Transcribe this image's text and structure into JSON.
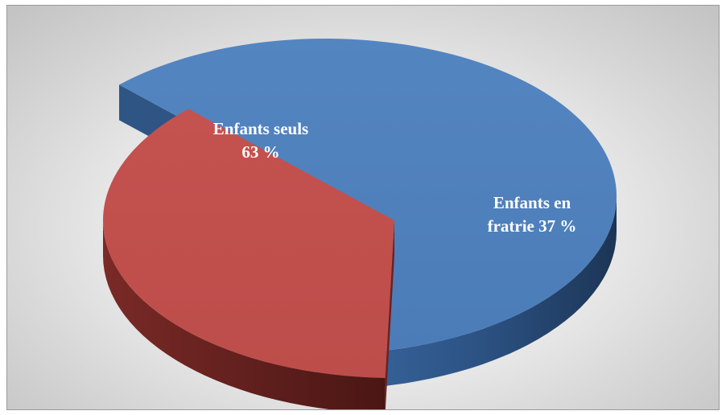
{
  "chart_data": {
    "type": "pie",
    "style": "3d-exploded",
    "slices": [
      {
        "label": "Enfants seuls",
        "value": 63,
        "value_text": "63 %",
        "label_lines": [
          "Enfants seuls",
          "63 %"
        ],
        "color": "#4f81bd",
        "side_color": "#2e5584"
      },
      {
        "label": "Enfants en fratrie",
        "value": 37,
        "value_text": "37 %",
        "label_lines": [
          "Enfants en",
          "fratrie 37 %"
        ],
        "color": "#c0504d",
        "side_color": "#6b2220"
      }
    ],
    "legend": "none"
  }
}
